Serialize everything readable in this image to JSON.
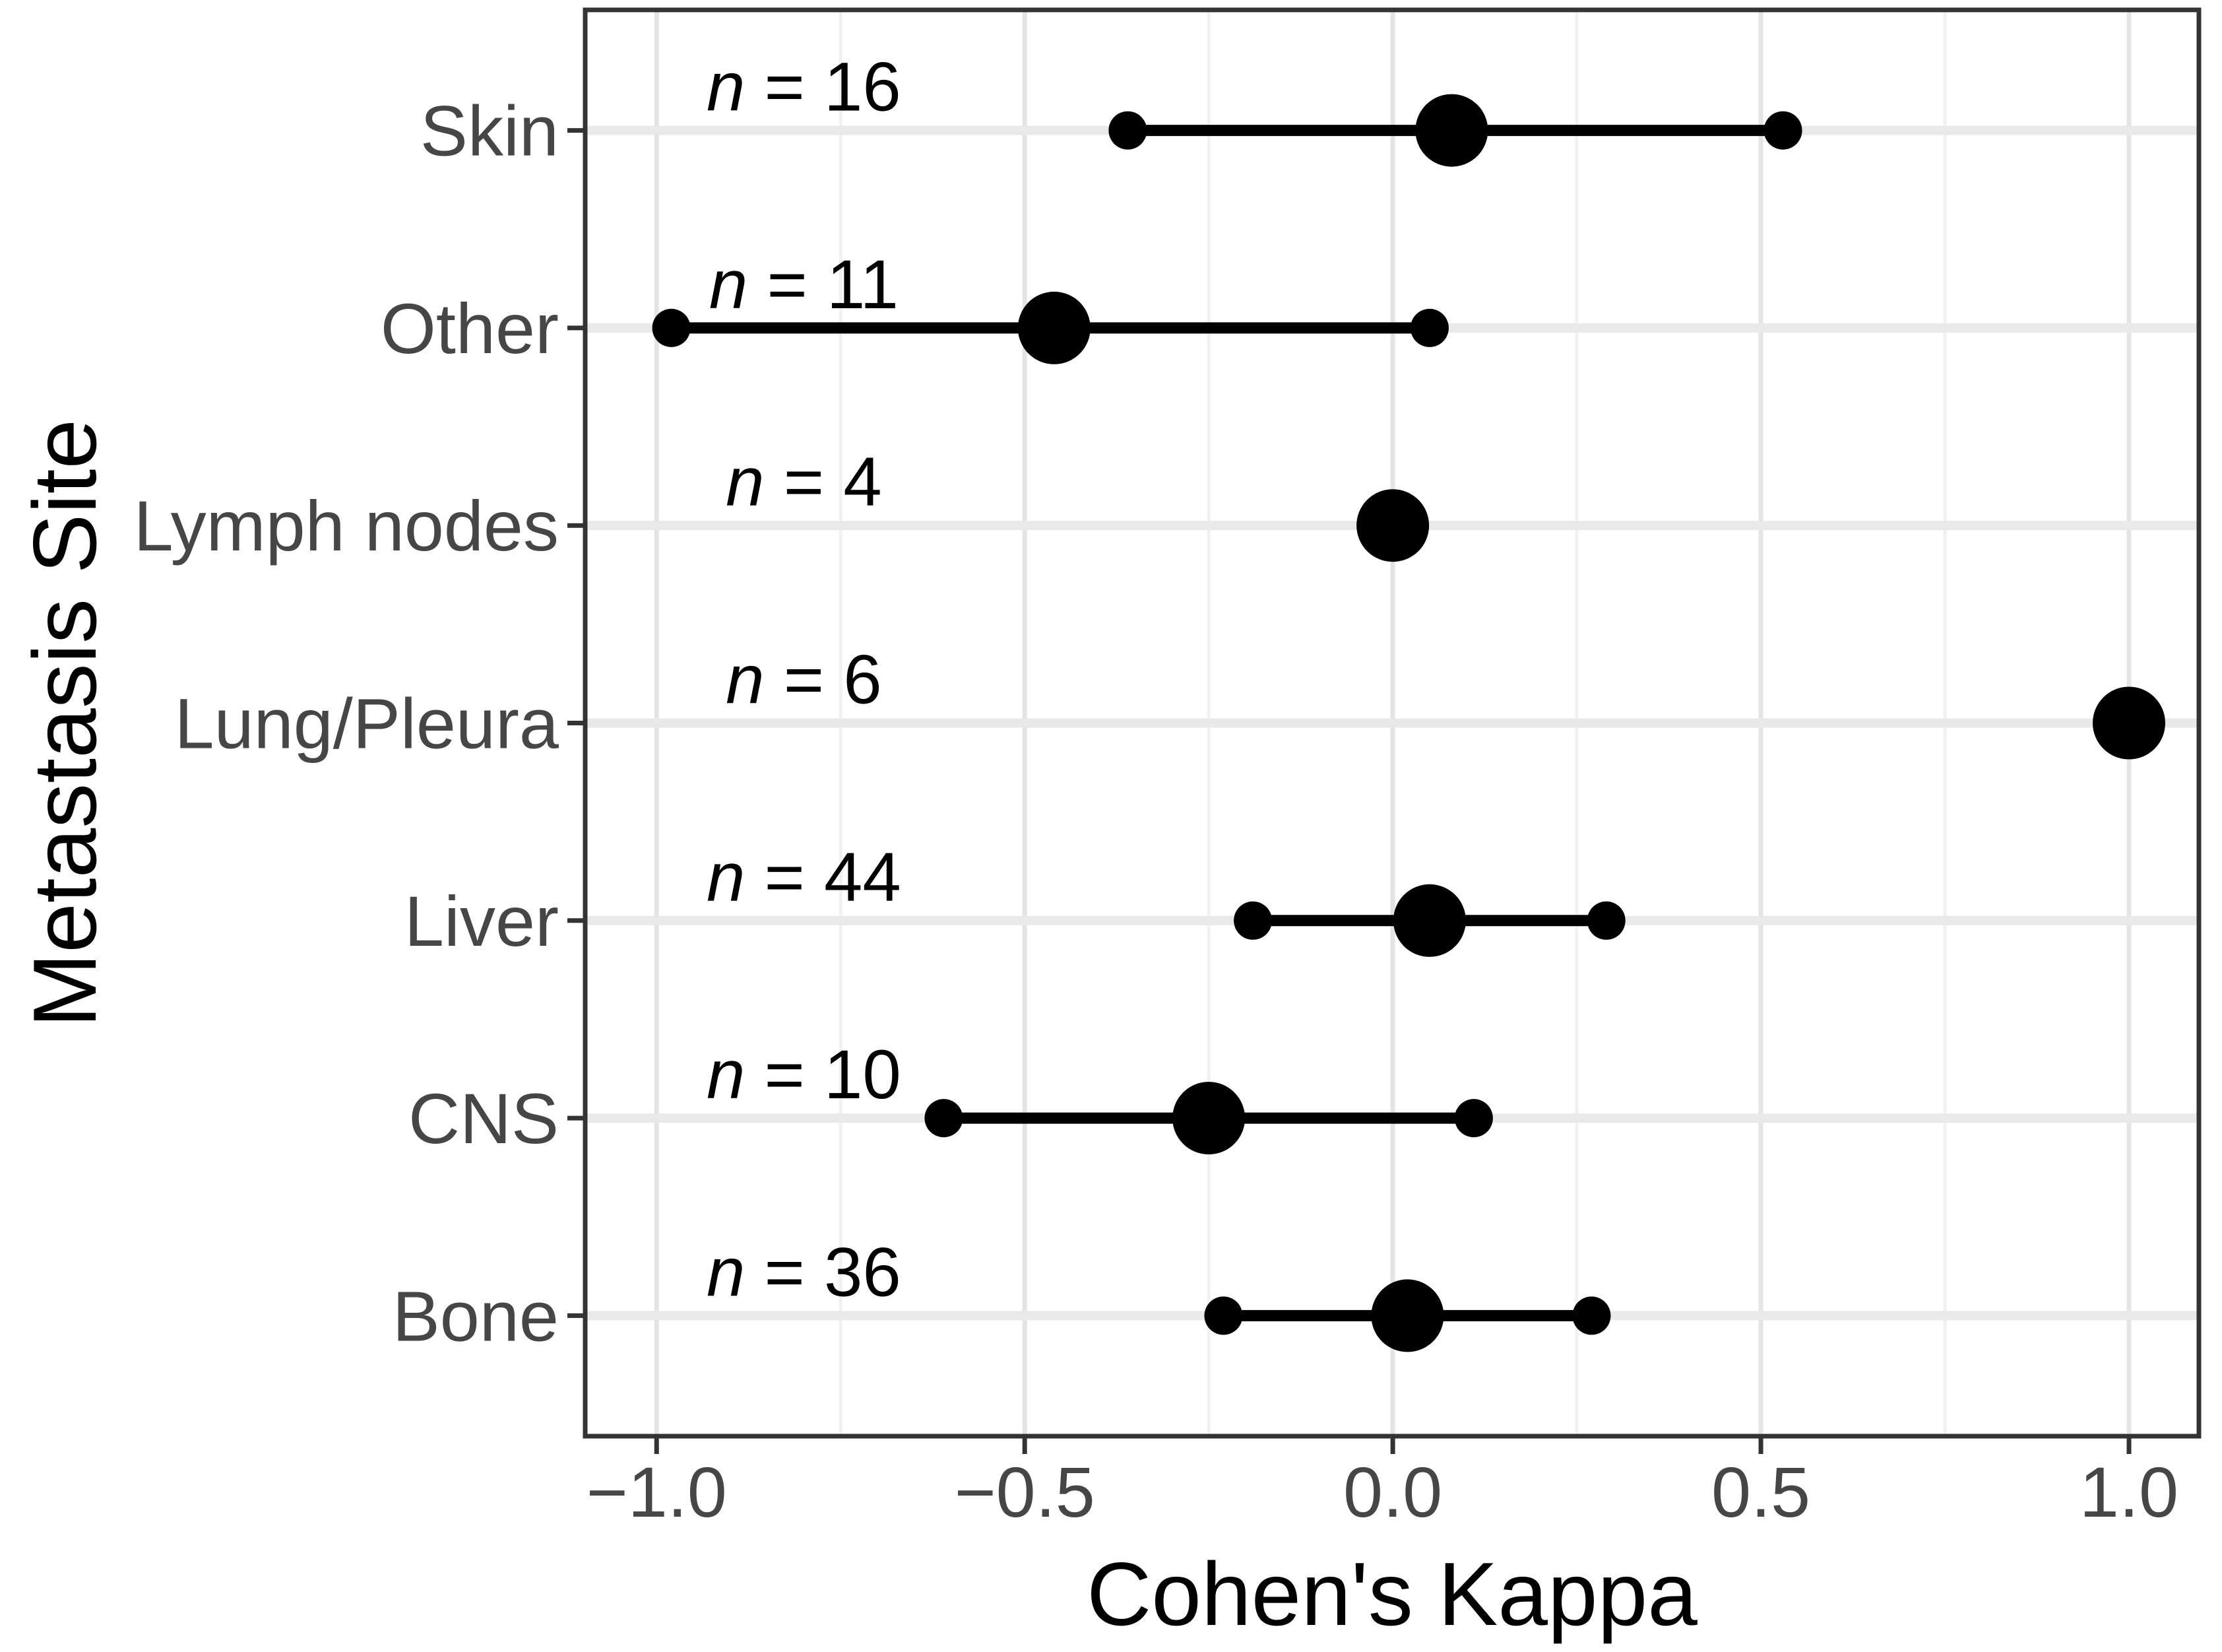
{
  "chart_data": {
    "type": "scatter",
    "style": "pointrange (forest plot, point estimate with confidence interval)",
    "title": "",
    "xlabel": "Cohen's Kappa",
    "ylabel": "Metastasis Site",
    "categories": [
      "Skin",
      "Other",
      "Lymph nodes",
      "Lung/Pleura",
      "Liver",
      "CNS",
      "Bone"
    ],
    "rows": [
      {
        "site": "Skin",
        "n": 16,
        "n_label": "n = 16",
        "estimate": 0.08,
        "ci_low": -0.36,
        "ci_high": 0.53
      },
      {
        "site": "Other",
        "n": 11,
        "n_label": "n = 11",
        "estimate": -0.46,
        "ci_low": -0.98,
        "ci_high": 0.05
      },
      {
        "site": "Lymph nodes",
        "n": 4,
        "n_label": "n = 4",
        "estimate": 0.0,
        "ci_low": null,
        "ci_high": null
      },
      {
        "site": "Lung/Pleura",
        "n": 6,
        "n_label": "n = 6",
        "estimate": 1.0,
        "ci_low": null,
        "ci_high": null
      },
      {
        "site": "Liver",
        "n": 44,
        "n_label": "n = 44",
        "estimate": 0.05,
        "ci_low": -0.19,
        "ci_high": 0.29
      },
      {
        "site": "CNS",
        "n": 10,
        "n_label": "n = 10",
        "estimate": -0.25,
        "ci_low": -0.61,
        "ci_high": 0.11
      },
      {
        "site": "Bone",
        "n": 36,
        "n_label": "n = 36",
        "estimate": 0.02,
        "ci_low": -0.23,
        "ci_high": 0.27
      }
    ],
    "x_ticks": [
      {
        "value": -1.0,
        "label": "−1.0"
      },
      {
        "value": -0.5,
        "label": "−0.5"
      },
      {
        "value": 0.0,
        "label": "0.0"
      },
      {
        "value": 0.5,
        "label": "0.5"
      },
      {
        "value": 1.0,
        "label": "1.0"
      }
    ],
    "x_minor_ticks": [
      -0.75,
      -0.25,
      0.25,
      0.75
    ],
    "xlim": [
      -1.097,
      1.095
    ],
    "grid": true,
    "legend": false,
    "n_label_x": -0.8
  },
  "colors": {
    "point": "#000000",
    "interval_line": "#000000",
    "axis_text": "#464646",
    "axis_title": "#000000",
    "n_label_text": "#000000",
    "grid_major": "#e4e4e4",
    "grid_minor": "#f1f1f1",
    "row_gridline": "#e9e9e9",
    "panel_border": "#333333",
    "background": "#ffffff"
  }
}
